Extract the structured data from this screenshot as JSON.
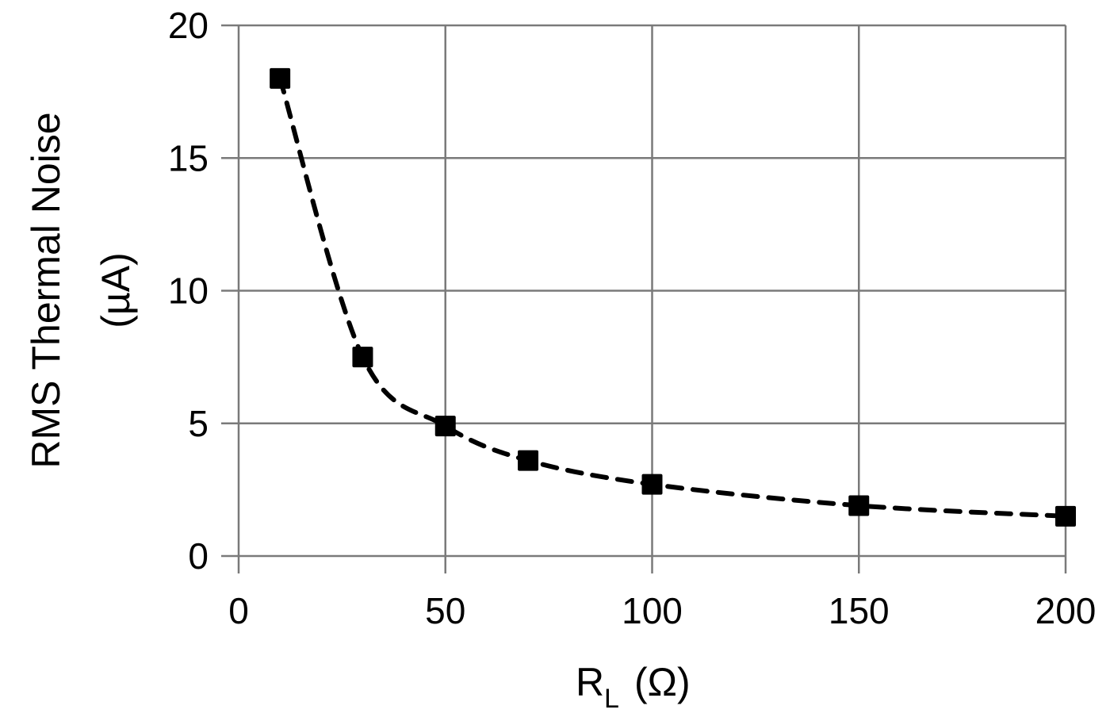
{
  "chart_data": {
    "type": "line",
    "title": "",
    "xlabel": "R_L (Ω)",
    "xlabel_main": "R",
    "xlabel_sub": "L",
    "xlabel_unit": "(Ω)",
    "ylabel": "RMS Thermal Noise (µA)",
    "ylabel_line1": "RMS Thermal Noise",
    "ylabel_line2": "(µA)",
    "xlim": [
      0,
      200
    ],
    "ylim": [
      0,
      20
    ],
    "xticks": [
      0,
      50,
      100,
      150,
      200
    ],
    "yticks": [
      0,
      5,
      10,
      15,
      20
    ],
    "grid": true,
    "legend": null,
    "series": [
      {
        "name": "RMS Thermal Noise",
        "marker": "square",
        "line_style": "dashed",
        "color": "#000000",
        "x": [
          10,
          30,
          50,
          70,
          100,
          150,
          200
        ],
        "values": [
          18.0,
          7.5,
          4.9,
          3.6,
          2.7,
          1.9,
          1.5
        ]
      }
    ]
  },
  "colors": {
    "grid": "#7a7a7a",
    "series": "#000000",
    "background": "#ffffff"
  }
}
